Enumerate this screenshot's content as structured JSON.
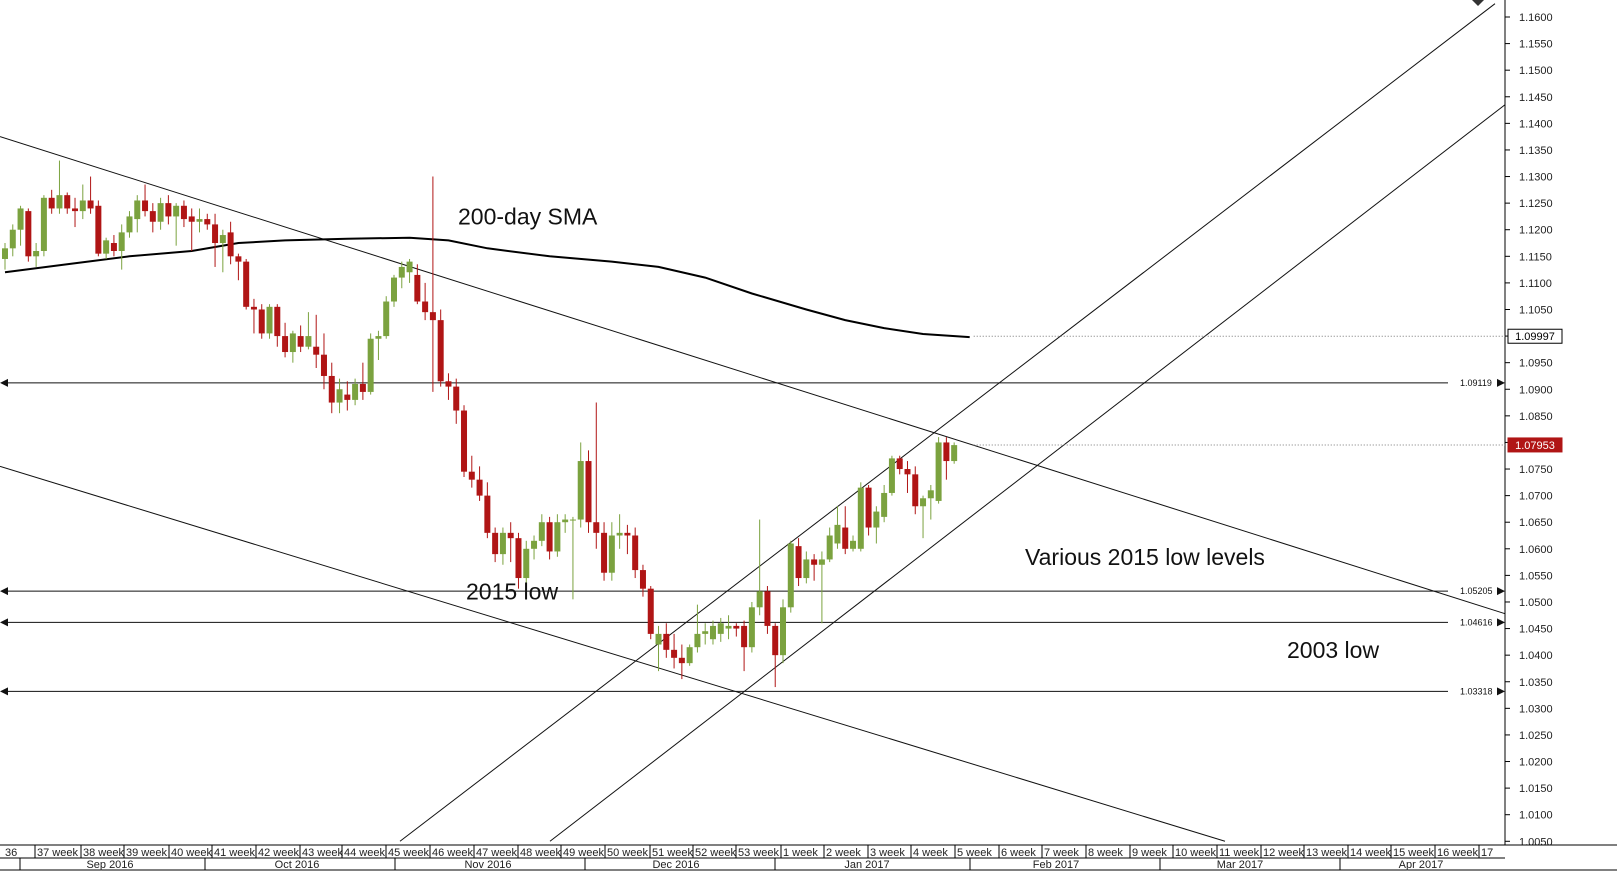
{
  "chart_data": {
    "type": "candlestick",
    "y_axis": {
      "min": 1.0,
      "max": 1.162,
      "ticks": [
        "1.1600",
        "1.1550",
        "1.1500",
        "1.1450",
        "1.1400",
        "1.1350",
        "1.1300",
        "1.1250",
        "1.1200",
        "1.1150",
        "1.1100",
        "1.1050",
        "1.1000",
        "1.0950",
        "1.0900",
        "1.0850",
        "1.0800",
        "1.0750",
        "1.0700",
        "1.0650",
        "1.0600",
        "1.0550",
        "1.0500",
        "1.0450",
        "1.0400",
        "1.0350",
        "1.0300",
        "1.0250",
        "1.0200",
        "1.0150",
        "1.0100",
        "1.0050"
      ]
    },
    "x_axis": {
      "week_labels": [
        "36",
        "37 week",
        "38 week",
        "39 week",
        "40 week",
        "41 week",
        "42 week",
        "43 week",
        "44 week",
        "45 week",
        "46 week",
        "47 week",
        "48 week",
        "49 week",
        "50 week",
        "51 week",
        "52 week",
        "53 week",
        "1 week",
        "2 week",
        "3 week",
        "4 week",
        "5 week",
        "6 week",
        "7 week",
        "8 week",
        "9 week",
        "10 week",
        "11 week",
        "12 week",
        "13 week",
        "14 week",
        "15 week",
        "16 week",
        "17"
      ],
      "month_labels": [
        "Sep 2016",
        "Oct 2016",
        "Nov 2016",
        "Dec 2016",
        "Jan 2017",
        "Feb 2017",
        "Mar 2017",
        "Apr 2017"
      ]
    },
    "candles": [
      {
        "o": 1.1145,
        "h": 1.1175,
        "l": 1.1125,
        "c": 1.1165
      },
      {
        "o": 1.1165,
        "h": 1.121,
        "l": 1.115,
        "c": 1.12
      },
      {
        "o": 1.12,
        "h": 1.1245,
        "l": 1.117,
        "c": 1.124
      },
      {
        "o": 1.1235,
        "h": 1.124,
        "l": 1.114,
        "c": 1.115
      },
      {
        "o": 1.115,
        "h": 1.1175,
        "l": 1.113,
        "c": 1.116
      },
      {
        "o": 1.116,
        "h": 1.1265,
        "l": 1.115,
        "c": 1.126
      },
      {
        "o": 1.126,
        "h": 1.1275,
        "l": 1.123,
        "c": 1.124
      },
      {
        "o": 1.124,
        "h": 1.133,
        "l": 1.123,
        "c": 1.1265
      },
      {
        "o": 1.1265,
        "h": 1.127,
        "l": 1.123,
        "c": 1.124
      },
      {
        "o": 1.124,
        "h": 1.126,
        "l": 1.1205,
        "c": 1.1235
      },
      {
        "o": 1.1235,
        "h": 1.1285,
        "l": 1.122,
        "c": 1.1255
      },
      {
        "o": 1.1255,
        "h": 1.13,
        "l": 1.123,
        "c": 1.124
      },
      {
        "o": 1.1245,
        "h": 1.1255,
        "l": 1.115,
        "c": 1.1155
      },
      {
        "o": 1.1155,
        "h": 1.1185,
        "l": 1.1145,
        "c": 1.118
      },
      {
        "o": 1.1175,
        "h": 1.119,
        "l": 1.115,
        "c": 1.116
      },
      {
        "o": 1.116,
        "h": 1.121,
        "l": 1.1125,
        "c": 1.1195
      },
      {
        "o": 1.1195,
        "h": 1.1235,
        "l": 1.1185,
        "c": 1.1225
      },
      {
        "o": 1.122,
        "h": 1.1265,
        "l": 1.1195,
        "c": 1.1255
      },
      {
        "o": 1.1255,
        "h": 1.1285,
        "l": 1.1225,
        "c": 1.1235
      },
      {
        "o": 1.1235,
        "h": 1.125,
        "l": 1.1195,
        "c": 1.1215
      },
      {
        "o": 1.1215,
        "h": 1.126,
        "l": 1.12,
        "c": 1.125
      },
      {
        "o": 1.125,
        "h": 1.1265,
        "l": 1.121,
        "c": 1.1225
      },
      {
        "o": 1.1225,
        "h": 1.125,
        "l": 1.117,
        "c": 1.1245
      },
      {
        "o": 1.1245,
        "h": 1.1255,
        "l": 1.1205,
        "c": 1.122
      },
      {
        "o": 1.1225,
        "h": 1.124,
        "l": 1.116,
        "c": 1.1215
      },
      {
        "o": 1.1215,
        "h": 1.124,
        "l": 1.1195,
        "c": 1.122
      },
      {
        "o": 1.122,
        "h": 1.123,
        "l": 1.12,
        "c": 1.121
      },
      {
        "o": 1.121,
        "h": 1.123,
        "l": 1.113,
        "c": 1.1175
      },
      {
        "o": 1.1175,
        "h": 1.12,
        "l": 1.112,
        "c": 1.119
      },
      {
        "o": 1.1195,
        "h": 1.1215,
        "l": 1.1135,
        "c": 1.115
      },
      {
        "o": 1.115,
        "h": 1.1155,
        "l": 1.1105,
        "c": 1.114
      },
      {
        "o": 1.114,
        "h": 1.1145,
        "l": 1.105,
        "c": 1.1055
      },
      {
        "o": 1.1055,
        "h": 1.107,
        "l": 1.1005,
        "c": 1.105
      },
      {
        "o": 1.105,
        "h": 1.106,
        "l": 1.0995,
        "c": 1.1005
      },
      {
        "o": 1.1005,
        "h": 1.106,
        "l": 1.0995,
        "c": 1.1055
      },
      {
        "o": 1.1055,
        "h": 1.106,
        "l": 1.098,
        "c": 1.1
      },
      {
        "o": 1.1,
        "h": 1.1025,
        "l": 1.096,
        "c": 1.097
      },
      {
        "o": 1.097,
        "h": 1.101,
        "l": 1.095,
        "c": 1.1005
      },
      {
        "o": 1.1,
        "h": 1.102,
        "l": 1.097,
        "c": 1.098
      },
      {
        "o": 1.098,
        "h": 1.1045,
        "l": 1.0975,
        "c": 1.1
      },
      {
        "o": 1.098,
        "h": 1.104,
        "l": 1.094,
        "c": 1.0965
      },
      {
        "o": 1.0965,
        "h": 1.1005,
        "l": 1.09,
        "c": 1.0925
      },
      {
        "o": 1.0925,
        "h": 1.095,
        "l": 1.0855,
        "c": 1.0875
      },
      {
        "o": 1.0875,
        "h": 1.092,
        "l": 1.0855,
        "c": 1.09
      },
      {
        "o": 1.089,
        "h": 1.0915,
        "l": 1.086,
        "c": 1.088
      },
      {
        "o": 1.088,
        "h": 1.092,
        "l": 1.087,
        "c": 1.091
      },
      {
        "o": 1.091,
        "h": 1.095,
        "l": 1.088,
        "c": 1.0895
      },
      {
        "o": 1.0895,
        "h": 1.1005,
        "l": 1.089,
        "c": 1.0995
      },
      {
        "o": 1.0995,
        "h": 1.101,
        "l": 1.0955,
        "c": 1.1
      },
      {
        "o": 1.1,
        "h": 1.1075,
        "l": 1.0995,
        "c": 1.1065
      },
      {
        "o": 1.1065,
        "h": 1.1115,
        "l": 1.1055,
        "c": 1.111
      },
      {
        "o": 1.111,
        "h": 1.114,
        "l": 1.109,
        "c": 1.113
      },
      {
        "o": 1.112,
        "h": 1.1145,
        "l": 1.11,
        "c": 1.114
      },
      {
        "o": 1.1115,
        "h": 1.1135,
        "l": 1.106,
        "c": 1.1065
      },
      {
        "o": 1.1065,
        "h": 1.11,
        "l": 1.103,
        "c": 1.1045
      },
      {
        "o": 1.1045,
        "h": 1.13,
        "l": 1.0895,
        "c": 1.103
      },
      {
        "o": 1.103,
        "h": 1.105,
        "l": 1.0905,
        "c": 1.0915
      },
      {
        "o": 1.0915,
        "h": 1.093,
        "l": 1.088,
        "c": 1.0905
      },
      {
        "o": 1.0905,
        "h": 1.092,
        "l": 1.0835,
        "c": 1.086
      },
      {
        "o": 1.086,
        "h": 1.087,
        "l": 1.0735,
        "c": 1.0745
      },
      {
        "o": 1.0745,
        "h": 1.0775,
        "l": 1.0715,
        "c": 1.073
      },
      {
        "o": 1.073,
        "h": 1.0755,
        "l": 1.069,
        "c": 1.07
      },
      {
        "o": 1.07,
        "h": 1.0725,
        "l": 1.062,
        "c": 1.063
      },
      {
        "o": 1.063,
        "h": 1.064,
        "l": 1.0575,
        "c": 1.059
      },
      {
        "o": 1.059,
        "h": 1.064,
        "l": 1.057,
        "c": 1.063
      },
      {
        "o": 1.063,
        "h": 1.065,
        "l": 1.0575,
        "c": 1.062
      },
      {
        "o": 1.062,
        "h": 1.063,
        "l": 1.0525,
        "c": 1.0545
      },
      {
        "o": 1.0545,
        "h": 1.0615,
        "l": 1.052,
        "c": 1.06
      },
      {
        "o": 1.06,
        "h": 1.0625,
        "l": 1.058,
        "c": 1.0615
      },
      {
        "o": 1.0615,
        "h": 1.0665,
        "l": 1.0605,
        "c": 1.065
      },
      {
        "o": 1.065,
        "h": 1.066,
        "l": 1.058,
        "c": 1.0595
      },
      {
        "o": 1.0595,
        "h": 1.0665,
        "l": 1.0585,
        "c": 1.065
      },
      {
        "o": 1.065,
        "h": 1.0665,
        "l": 1.063,
        "c": 1.0655
      },
      {
        "o": 1.0655,
        "h": 1.066,
        "l": 1.0505,
        "c": 1.0655
      },
      {
        "o": 1.0655,
        "h": 1.08,
        "l": 1.064,
        "c": 1.0765
      },
      {
        "o": 1.0765,
        "h": 1.0785,
        "l": 1.063,
        "c": 1.065
      },
      {
        "o": 1.065,
        "h": 1.0875,
        "l": 1.06,
        "c": 1.063
      },
      {
        "o": 1.063,
        "h": 1.065,
        "l": 1.054,
        "c": 1.0555
      },
      {
        "o": 1.0555,
        "h": 1.065,
        "l": 1.054,
        "c": 1.0625
      },
      {
        "o": 1.0625,
        "h": 1.0665,
        "l": 1.06,
        "c": 1.063
      },
      {
        "o": 1.063,
        "h": 1.0645,
        "l": 1.059,
        "c": 1.0625
      },
      {
        "o": 1.0625,
        "h": 1.064,
        "l": 1.0545,
        "c": 1.056
      },
      {
        "o": 1.056,
        "h": 1.057,
        "l": 1.051,
        "c": 1.0525
      },
      {
        "o": 1.0525,
        "h": 1.053,
        "l": 1.043,
        "c": 1.044
      },
      {
        "o": 1.042,
        "h": 1.0455,
        "l": 1.037,
        "c": 1.044
      },
      {
        "o": 1.044,
        "h": 1.046,
        "l": 1.0395,
        "c": 1.041
      },
      {
        "o": 1.041,
        "h": 1.044,
        "l": 1.0375,
        "c": 1.0395
      },
      {
        "o": 1.0395,
        "h": 1.042,
        "l": 1.0355,
        "c": 1.0385
      },
      {
        "o": 1.0385,
        "h": 1.042,
        "l": 1.038,
        "c": 1.0415
      },
      {
        "o": 1.0415,
        "h": 1.0495,
        "l": 1.0405,
        "c": 1.044
      },
      {
        "o": 1.044,
        "h": 1.046,
        "l": 1.042,
        "c": 1.0445
      },
      {
        "o": 1.043,
        "h": 1.0465,
        "l": 1.042,
        "c": 1.0455
      },
      {
        "o": 1.044,
        "h": 1.047,
        "l": 1.0425,
        "c": 1.046
      },
      {
        "o": 1.045,
        "h": 1.0475,
        "l": 1.043,
        "c": 1.0455
      },
      {
        "o": 1.0455,
        "h": 1.046,
        "l": 1.0435,
        "c": 1.045
      },
      {
        "o": 1.0455,
        "h": 1.0465,
        "l": 1.037,
        "c": 1.0415
      },
      {
        "o": 1.0415,
        "h": 1.05,
        "l": 1.0405,
        "c": 1.049
      },
      {
        "o": 1.049,
        "h": 1.0655,
        "l": 1.0475,
        "c": 1.052
      },
      {
        "o": 1.052,
        "h": 1.053,
        "l": 1.044,
        "c": 1.0455
      },
      {
        "o": 1.0455,
        "h": 1.046,
        "l": 1.034,
        "c": 1.04
      },
      {
        "o": 1.04,
        "h": 1.0505,
        "l": 1.0385,
        "c": 1.049
      },
      {
        "o": 1.049,
        "h": 1.0615,
        "l": 1.048,
        "c": 1.061
      },
      {
        "o": 1.0605,
        "h": 1.062,
        "l": 1.053,
        "c": 1.0545
      },
      {
        "o": 1.0545,
        "h": 1.0595,
        "l": 1.0535,
        "c": 1.058
      },
      {
        "o": 1.058,
        "h": 1.059,
        "l": 1.054,
        "c": 1.057
      },
      {
        "o": 1.057,
        "h": 1.0595,
        "l": 1.046,
        "c": 1.058
      },
      {
        "o": 1.058,
        "h": 1.064,
        "l": 1.0575,
        "c": 1.0625
      },
      {
        "o": 1.061,
        "h": 1.068,
        "l": 1.06,
        "c": 1.0645
      },
      {
        "o": 1.064,
        "h": 1.068,
        "l": 1.059,
        "c": 1.06
      },
      {
        "o": 1.06,
        "h": 1.0625,
        "l": 1.0595,
        "c": 1.0615
      },
      {
        "o": 1.06,
        "h": 1.0725,
        "l": 1.0595,
        "c": 1.0715
      },
      {
        "o": 1.0715,
        "h": 1.072,
        "l": 1.0625,
        "c": 1.064
      },
      {
        "o": 1.064,
        "h": 1.068,
        "l": 1.061,
        "c": 1.067
      },
      {
        "o": 1.066,
        "h": 1.072,
        "l": 1.065,
        "c": 1.0705
      },
      {
        "o": 1.0705,
        "h": 1.0775,
        "l": 1.07,
        "c": 1.077
      },
      {
        "o": 1.077,
        "h": 1.0775,
        "l": 1.074,
        "c": 1.075
      },
      {
        "o": 1.075,
        "h": 1.0765,
        "l": 1.0705,
        "c": 1.074
      },
      {
        "o": 1.074,
        "h": 1.0755,
        "l": 1.0665,
        "c": 1.068
      },
      {
        "o": 1.068,
        "h": 1.07,
        "l": 1.062,
        "c": 1.0695
      },
      {
        "o": 1.0695,
        "h": 1.072,
        "l": 1.0655,
        "c": 1.071
      },
      {
        "o": 1.069,
        "h": 1.081,
        "l": 1.0685,
        "c": 1.08
      },
      {
        "o": 1.08,
        "h": 1.081,
        "l": 1.073,
        "c": 1.0765
      },
      {
        "o": 1.0765,
        "h": 1.08,
        "l": 1.076,
        "c": 1.0795
      }
    ],
    "sma": [
      [
        0,
        1.112
      ],
      [
        8,
        1.1135
      ],
      [
        16,
        1.115
      ],
      [
        24,
        1.116
      ],
      [
        30,
        1.1175
      ],
      [
        36,
        1.118
      ],
      [
        44,
        1.1183
      ],
      [
        52,
        1.1185
      ],
      [
        57,
        1.118
      ],
      [
        62,
        1.1165
      ],
      [
        70,
        1.115
      ],
      [
        78,
        1.114
      ],
      [
        84,
        1.113
      ],
      [
        90,
        1.111
      ],
      [
        96,
        1.108
      ],
      [
        103,
        1.105
      ],
      [
        108,
        1.103
      ],
      [
        113,
        1.1015
      ],
      [
        118,
        1.1004
      ],
      [
        124,
        1.0998
      ]
    ],
    "horizontal_levels": [
      {
        "value": 1.09119,
        "label": "1.09119"
      },
      {
        "value": 1.05205,
        "label": "1.05205"
      },
      {
        "value": 1.04616,
        "label": "1.04616"
      },
      {
        "value": 1.03318,
        "label": "1.03318"
      }
    ],
    "trendlines": [
      {
        "from": {
          "x": 0,
          "y": 1.1375
        },
        "to": {
          "x": 1505,
          "y": 1.0478
        }
      },
      {
        "from": {
          "x": 0,
          "y": 1.0755
        },
        "to": {
          "x": 1225,
          "y": 1.005
        }
      },
      {
        "from": {
          "x": 400,
          "y": 1.005
        },
        "to": {
          "x": 1495,
          "y": 1.1625
        }
      },
      {
        "from": {
          "x": 550,
          "y": 1.005
        },
        "to": {
          "x": 1505,
          "y": 1.1435
        }
      }
    ],
    "price_markers": [
      {
        "value": 1.09997,
        "label": "1.09997",
        "style": "outline",
        "line_from_index": 124
      },
      {
        "value": 1.07953,
        "label": "1.07953",
        "style": "filled",
        "line_from_index": 124
      }
    ],
    "annotations": [
      {
        "text": "200-day SMA",
        "x": 458,
        "y": 1.121
      },
      {
        "text": "2015 low",
        "x": 466,
        "y": 1.0505
      },
      {
        "text": "Various 2015 low levels",
        "x": 1025,
        "y": 1.057
      },
      {
        "text": "2003 low",
        "x": 1287,
        "y": 1.0395
      }
    ],
    "colors": {
      "bull": "#7ba23f",
      "bear": "#b01515",
      "badge_fill": "#b01515",
      "line": "#111111",
      "grid": "#cccccc"
    }
  }
}
